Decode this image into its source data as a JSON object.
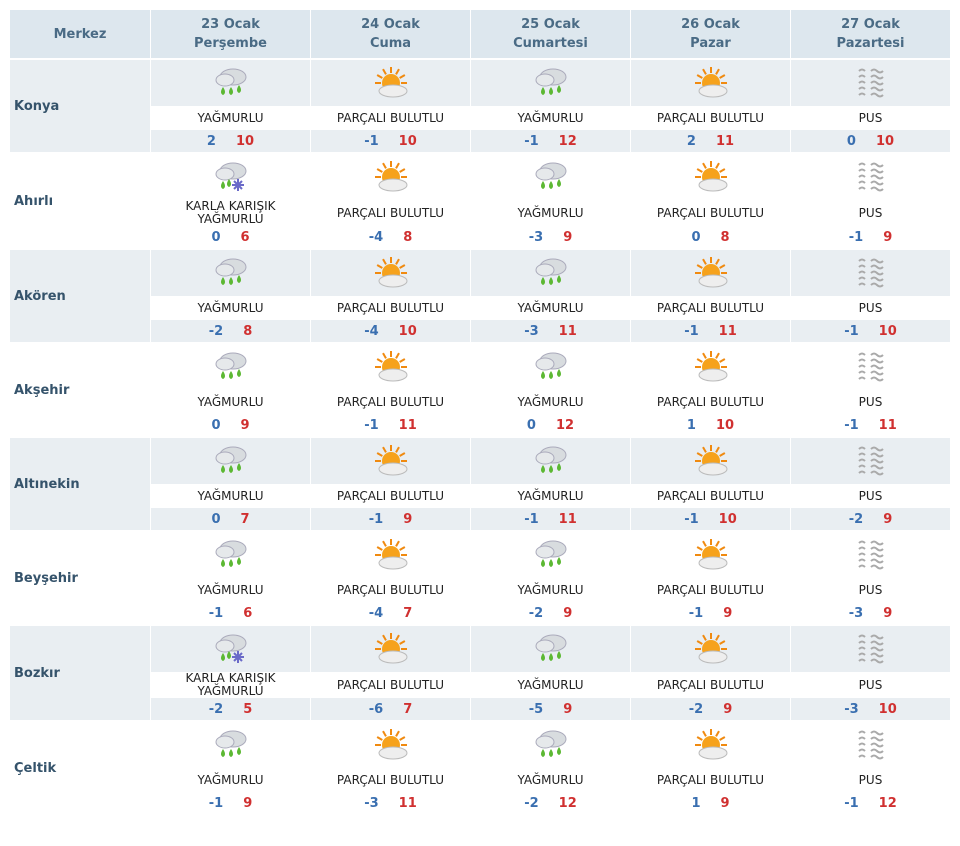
{
  "header": {
    "first_col": "Merkez",
    "days": [
      {
        "date": "23 Ocak",
        "weekday": "Perşembe"
      },
      {
        "date": "24 Ocak",
        "weekday": "Cuma"
      },
      {
        "date": "25 Ocak",
        "weekday": "Cumartesi"
      },
      {
        "date": "26 Ocak",
        "weekday": "Pazar"
      },
      {
        "date": "27 Ocak",
        "weekday": "Pazartesi"
      }
    ]
  },
  "rows": [
    {
      "name": "Konya",
      "days": [
        {
          "condition": "YAĞMURLU",
          "min": 2,
          "max": 10
        },
        {
          "condition": "PARÇALI BULUTLU",
          "min": -1,
          "max": 10
        },
        {
          "condition": "YAĞMURLU",
          "min": -1,
          "max": 12
        },
        {
          "condition": "PARÇALI BULUTLU",
          "min": 2,
          "max": 11
        },
        {
          "condition": "PUS",
          "min": 0,
          "max": 10
        }
      ]
    },
    {
      "name": "Ahırlı",
      "days": [
        {
          "condition": "KARLA KARIŞIK YAĞMURLU",
          "min": 0,
          "max": 6
        },
        {
          "condition": "PARÇALI BULUTLU",
          "min": -4,
          "max": 8
        },
        {
          "condition": "YAĞMURLU",
          "min": -3,
          "max": 9
        },
        {
          "condition": "PARÇALI BULUTLU",
          "min": 0,
          "max": 8
        },
        {
          "condition": "PUS",
          "min": -1,
          "max": 9
        }
      ]
    },
    {
      "name": "Akören",
      "days": [
        {
          "condition": "YAĞMURLU",
          "min": -2,
          "max": 8
        },
        {
          "condition": "PARÇALI BULUTLU",
          "min": -4,
          "max": 10
        },
        {
          "condition": "YAĞMURLU",
          "min": -3,
          "max": 11
        },
        {
          "condition": "PARÇALI BULUTLU",
          "min": -1,
          "max": 11
        },
        {
          "condition": "PUS",
          "min": -1,
          "max": 10
        }
      ]
    },
    {
      "name": "Akşehir",
      "days": [
        {
          "condition": "YAĞMURLU",
          "min": 0,
          "max": 9
        },
        {
          "condition": "PARÇALI BULUTLU",
          "min": -1,
          "max": 11
        },
        {
          "condition": "YAĞMURLU",
          "min": 0,
          "max": 12
        },
        {
          "condition": "PARÇALI BULUTLU",
          "min": 1,
          "max": 10
        },
        {
          "condition": "PUS",
          "min": -1,
          "max": 11
        }
      ]
    },
    {
      "name": "Altınekin",
      "days": [
        {
          "condition": "YAĞMURLU",
          "min": 0,
          "max": 7
        },
        {
          "condition": "PARÇALI BULUTLU",
          "min": -1,
          "max": 9
        },
        {
          "condition": "YAĞMURLU",
          "min": -1,
          "max": 11
        },
        {
          "condition": "PARÇALI BULUTLU",
          "min": -1,
          "max": 10
        },
        {
          "condition": "PUS",
          "min": -2,
          "max": 9
        }
      ]
    },
    {
      "name": "Beyşehir",
      "days": [
        {
          "condition": "YAĞMURLU",
          "min": -1,
          "max": 6
        },
        {
          "condition": "PARÇALI BULUTLU",
          "min": -4,
          "max": 7
        },
        {
          "condition": "YAĞMURLU",
          "min": -2,
          "max": 9
        },
        {
          "condition": "PARÇALI BULUTLU",
          "min": -1,
          "max": 9
        },
        {
          "condition": "PUS",
          "min": -3,
          "max": 9
        }
      ]
    },
    {
      "name": "Bozkır",
      "days": [
        {
          "condition": "KARLA KARIŞIK YAĞMURLU",
          "min": -2,
          "max": 5
        },
        {
          "condition": "PARÇALI BULUTLU",
          "min": -6,
          "max": 7
        },
        {
          "condition": "YAĞMURLU",
          "min": -5,
          "max": 9
        },
        {
          "condition": "PARÇALI BULUTLU",
          "min": -2,
          "max": 9
        },
        {
          "condition": "PUS",
          "min": -3,
          "max": 10
        }
      ]
    },
    {
      "name": "Çeltik",
      "days": [
        {
          "condition": "YAĞMURLU",
          "min": -1,
          "max": 9
        },
        {
          "condition": "PARÇALI BULUTLU",
          "min": -3,
          "max": 11
        },
        {
          "condition": "YAĞMURLU",
          "min": -2,
          "max": 12
        },
        {
          "condition": "PARÇALI BULUTLU",
          "min": 1,
          "max": 9
        },
        {
          "condition": "PUS",
          "min": -1,
          "max": 12
        }
      ]
    }
  ]
}
